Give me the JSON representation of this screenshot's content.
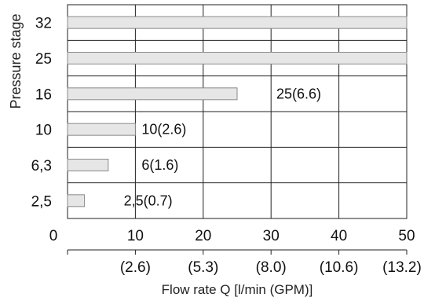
{
  "chart_data": {
    "type": "bar",
    "orientation": "horizontal",
    "categories": [
      "32",
      "25",
      "16",
      "10",
      "6,3",
      "2,5"
    ],
    "values": [
      50,
      50,
      25,
      10,
      6,
      2.5
    ],
    "data_labels": [
      "",
      "",
      "25(6.6)",
      "10(2.6)",
      "6(1.6)",
      "2,5(0.7)"
    ],
    "xlim": [
      0,
      50
    ],
    "x_ticks": [
      "0",
      "10",
      "20",
      "30",
      "40",
      "50"
    ],
    "secondary_x_ticks": [
      "(2.6)",
      "(5.3)",
      "(8.0)",
      "(10.6)",
      "(13.2)"
    ],
    "ylabel": "Pressure stage",
    "xlabel": "Flow rate Q [l/min (GPM)]",
    "grid": true,
    "colors": {
      "bar_fill": "#e6e6e6",
      "bar_stroke": "#8a8a8a",
      "grid": "#222222"
    }
  }
}
